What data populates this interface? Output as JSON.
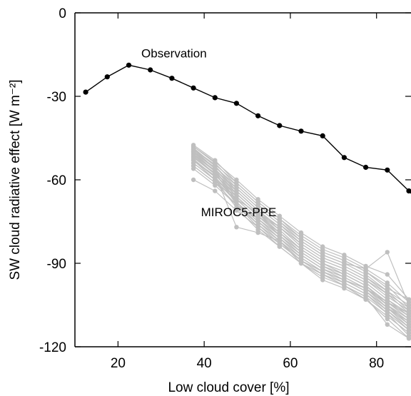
{
  "chart_data": {
    "type": "line",
    "xlabel": "Low cloud cover [%]",
    "ylabel": "SW cloud radiative effect [W m⁻²]",
    "xlim": [
      10,
      88
    ],
    "ylim": [
      -120,
      0
    ],
    "xticks": [
      20,
      40,
      60,
      80
    ],
    "yticks": [
      0,
      -30,
      -60,
      -90,
      -120
    ],
    "grid": false,
    "legend": "none",
    "annotations": [
      {
        "text": "Observation",
        "x": 33,
        "y": -14.5
      },
      {
        "text": "MIROC5-PPE",
        "x": 48,
        "y": -71.5
      }
    ],
    "colors": {
      "observation": "#000000",
      "ensemble": "#bfbfbf",
      "axes": "#000000"
    },
    "series": [
      {
        "role": "observation",
        "x": [
          12.5,
          17.5,
          22.5,
          27.5,
          32.5,
          37.5,
          42.5,
          47.5,
          52.5,
          57.5,
          62.5,
          67.5,
          72.5,
          77.5,
          82.5,
          87.5,
          90
        ],
        "y": [
          -28.5,
          -23,
          -18.8,
          -20.5,
          -23.5,
          -27,
          -30.5,
          -32.5,
          -37,
          -40.5,
          -42.5,
          -44.2,
          -52,
          -55.5,
          -56.5,
          -64,
          -68
        ]
      }
    ],
    "ensemble": {
      "x": [
        37.5,
        42.5,
        47.5,
        52.5,
        57.5,
        62.5,
        67.5,
        72.5,
        77.5,
        82.5,
        87.5
      ],
      "members": [
        [
          -47.5,
          -53,
          -61,
          -68,
          -74,
          -81,
          -86,
          -89,
          -93,
          -99,
          -103
        ],
        [
          -48,
          -54,
          -62,
          -69,
          -75,
          -82,
          -87,
          -90,
          -94,
          -100,
          -105
        ],
        [
          -49,
          -55,
          -63,
          -70,
          -76,
          -83,
          -88,
          -91,
          -95,
          -101,
          -106
        ],
        [
          -50,
          -56,
          -64,
          -71,
          -77,
          -84,
          -89,
          -92,
          -96,
          -102,
          -107
        ],
        [
          -51,
          -57,
          -65,
          -72,
          -78,
          -85,
          -90,
          -93,
          -97,
          -103,
          -108
        ],
        [
          -52,
          -58,
          -66,
          -73,
          -79,
          -86,
          -91,
          -94,
          -98,
          -104,
          -109
        ],
        [
          -53,
          -59,
          -67,
          -74,
          -80,
          -87,
          -92,
          -95,
          -99,
          -105,
          -110
        ],
        [
          -54,
          -60,
          -68,
          -75,
          -81,
          -88,
          -93,
          -96,
          -100,
          -106,
          -111
        ],
        [
          -49.5,
          -56,
          -65,
          -72,
          -79,
          -86,
          -91,
          -95,
          -99,
          -106,
          -113
        ],
        [
          -48.5,
          -55,
          -64,
          -71,
          -78,
          -85,
          -90,
          -94,
          -98,
          -105,
          -112
        ],
        [
          -50.5,
          -57,
          -66,
          -73,
          -80,
          -87,
          -92,
          -96,
          -100,
          -107,
          -114
        ],
        [
          -51.5,
          -58,
          -67,
          -74,
          -81,
          -88,
          -93,
          -97,
          -101,
          -108,
          -116
        ],
        [
          -52.5,
          -59,
          -68,
          -75,
          -82,
          -89,
          -94,
          -98,
          -103,
          -110,
          -117
        ],
        [
          -55,
          -61,
          -69,
          -76,
          -83,
          -89,
          -93,
          -96,
          -99,
          -104,
          -108
        ],
        [
          -60,
          -64,
          -71,
          -77,
          -84,
          -90,
          -94,
          -98,
          -102,
          -112,
          -117
        ],
        [
          -48,
          -53.5,
          -60,
          -67,
          -73,
          -79,
          -84,
          -87,
          -91,
          -94,
          -103
        ],
        [
          -49,
          -54.5,
          -61,
          -68,
          -74,
          -80,
          -85,
          -88,
          -92,
          -97,
          -104
        ],
        [
          -50,
          -55.5,
          -62,
          -69,
          -75,
          -81,
          -86,
          -89,
          -93,
          -98,
          -106
        ],
        [
          -51,
          -56.5,
          -63,
          -70,
          -76,
          -82,
          -87,
          -90,
          -92,
          -86,
          -105
        ],
        [
          -52,
          -57.5,
          -64,
          -71,
          -77,
          -83,
          -88,
          -91,
          -95,
          -100,
          -107
        ],
        [
          -53,
          -58.5,
          -65,
          -72,
          -77,
          -84,
          -89,
          -92,
          -96,
          -101,
          -108
        ],
        [
          -54,
          -60,
          -66,
          -73,
          -79,
          -85,
          -90,
          -93,
          -97,
          -103,
          -109
        ],
        [
          -55,
          -61,
          -67,
          -72,
          -80,
          -86,
          -91,
          -94,
          -98,
          -104,
          -110
        ],
        [
          -56,
          -62,
          -69,
          -74,
          -81,
          -87,
          -92,
          -95,
          -99,
          -105,
          -111
        ],
        [
          -51,
          -58,
          -77,
          -79,
          -82,
          -88,
          -93,
          -96,
          -100,
          -106,
          -112
        ],
        [
          -50,
          -57,
          -69,
          -77,
          -83,
          -89,
          -94,
          -97,
          -101,
          -107,
          -113
        ],
        [
          -49,
          -56,
          -68,
          -76,
          -82,
          -90,
          -95,
          -98,
          -102,
          -108,
          -114
        ],
        [
          -53,
          -60,
          -70,
          -78,
          -84,
          -90,
          -96,
          -99,
          -103,
          -109,
          -115
        ]
      ]
    }
  }
}
